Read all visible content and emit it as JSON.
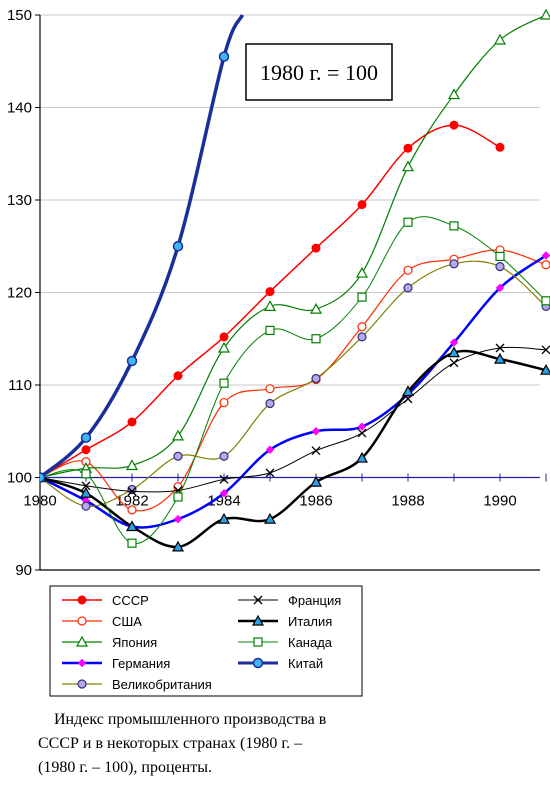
{
  "chart_data": {
    "type": "line",
    "title": "",
    "xlabel": "",
    "ylabel": "",
    "xlim": [
      1980,
      1991
    ],
    "ylim": [
      90,
      150
    ],
    "x_ticks": [
      "1980",
      "1982",
      "1984",
      "1986",
      "1988",
      "1990"
    ],
    "y_ticks": [
      "90",
      "100",
      "110",
      "120",
      "130",
      "140",
      "150"
    ],
    "reference_line": 100,
    "annotation": "1980 г. = 100",
    "legend_position": "bottom",
    "series": [
      {
        "name": "СССР",
        "color": "#ff0000",
        "width": 1.5,
        "marker": "dot",
        "x": [
          1980,
          1981,
          1982,
          1983,
          1984,
          1985,
          1986,
          1987,
          1988,
          1989,
          1990
        ],
        "y": [
          100,
          103,
          106,
          111,
          115.2,
          120.1,
          124.8,
          129.5,
          135.6,
          138.1,
          135.7
        ]
      },
      {
        "name": "США",
        "color": "#ff2a00",
        "width": 1.2,
        "marker": "circle",
        "x": [
          1980,
          1981,
          1982,
          1983,
          1984,
          1985,
          1986,
          1987,
          1988,
          1989,
          1990,
          1991
        ],
        "y": [
          100,
          101.7,
          96.5,
          99.0,
          108.1,
          109.6,
          110.6,
          116.3,
          122.4,
          123.6,
          124.6,
          123.0
        ]
      },
      {
        "name": "Япония",
        "color": "#008000",
        "width": 1.2,
        "marker": "triangle",
        "x": [
          1980,
          1981,
          1982,
          1983,
          1984,
          1985,
          1986,
          1987,
          1988,
          1989,
          1990,
          1991
        ],
        "y": [
          100,
          101.0,
          101.3,
          104.5,
          114.0,
          118.5,
          118.2,
          122.1,
          133.6,
          141.4,
          147.3,
          150.0
        ]
      },
      {
        "name": "Германия",
        "color": "#0000ff",
        "width": 2.5,
        "marker": "diamond",
        "x": [
          1980,
          1981,
          1982,
          1983,
          1984,
          1985,
          1986,
          1987,
          1988,
          1989,
          1990,
          1991
        ],
        "y": [
          100,
          97.5,
          94.7,
          95.5,
          98.3,
          103.0,
          105.0,
          105.5,
          109.0,
          114.6,
          120.5,
          124.0
        ]
      },
      {
        "name": "Великобритания",
        "color": "#808000",
        "width": 1.2,
        "marker": "circle",
        "x": [
          1980,
          1981,
          1982,
          1983,
          1984,
          1985,
          1986,
          1987,
          1988,
          1989,
          1990,
          1991
        ],
        "y": [
          100,
          96.9,
          98.7,
          102.3,
          102.3,
          108.0,
          110.7,
          115.2,
          120.5,
          123.1,
          122.8,
          118.5
        ]
      },
      {
        "name": "Франция",
        "color": "#000000",
        "width": 1.0,
        "marker": "x",
        "x": [
          1980,
          1981,
          1982,
          1983,
          1984,
          1985,
          1986,
          1987,
          1988,
          1989,
          1990,
          1991
        ],
        "y": [
          100,
          99.1,
          98.5,
          98.6,
          99.8,
          100.5,
          102.9,
          104.8,
          108.5,
          112.4,
          114.0,
          113.8
        ]
      },
      {
        "name": "Италия",
        "color": "#000000",
        "width": 2.5,
        "marker": "triangle",
        "x": [
          1980,
          1981,
          1982,
          1983,
          1984,
          1985,
          1986,
          1987,
          1988,
          1989,
          1990,
          1991
        ],
        "y": [
          100,
          98.3,
          94.7,
          92.5,
          95.5,
          95.5,
          99.5,
          102.1,
          109.3,
          113.5,
          112.8,
          111.6
        ]
      },
      {
        "name": "Канада",
        "color": "#008000",
        "width": 1.0,
        "marker": "square",
        "x": [
          1980,
          1981,
          1982,
          1983,
          1984,
          1985,
          1986,
          1987,
          1988,
          1989,
          1990,
          1991
        ],
        "y": [
          100,
          100.4,
          92.9,
          97.9,
          110.2,
          115.9,
          115.0,
          119.5,
          127.6,
          127.2,
          123.9,
          119.1
        ]
      },
      {
        "name": "Китай",
        "color": "#1a2f9c",
        "width": 3.5,
        "marker": "filled-circle",
        "x": [
          1980,
          1981,
          1982,
          1983,
          1984,
          1984.4
        ],
        "y": [
          100,
          104.3,
          112.6,
          125.0,
          145.5,
          150.0
        ]
      }
    ]
  },
  "legend_order": [
    "СССР",
    "Франция",
    "США",
    "Италия",
    "Япония",
    "Канада",
    "Германия",
    "Китай",
    "Великобритания"
  ],
  "caption": {
    "line1": "Индекс промышленного производства в",
    "line2": "СССР и в некоторых странах (1980 г. –",
    "line3": "(1980 г. –  100), проценты."
  }
}
